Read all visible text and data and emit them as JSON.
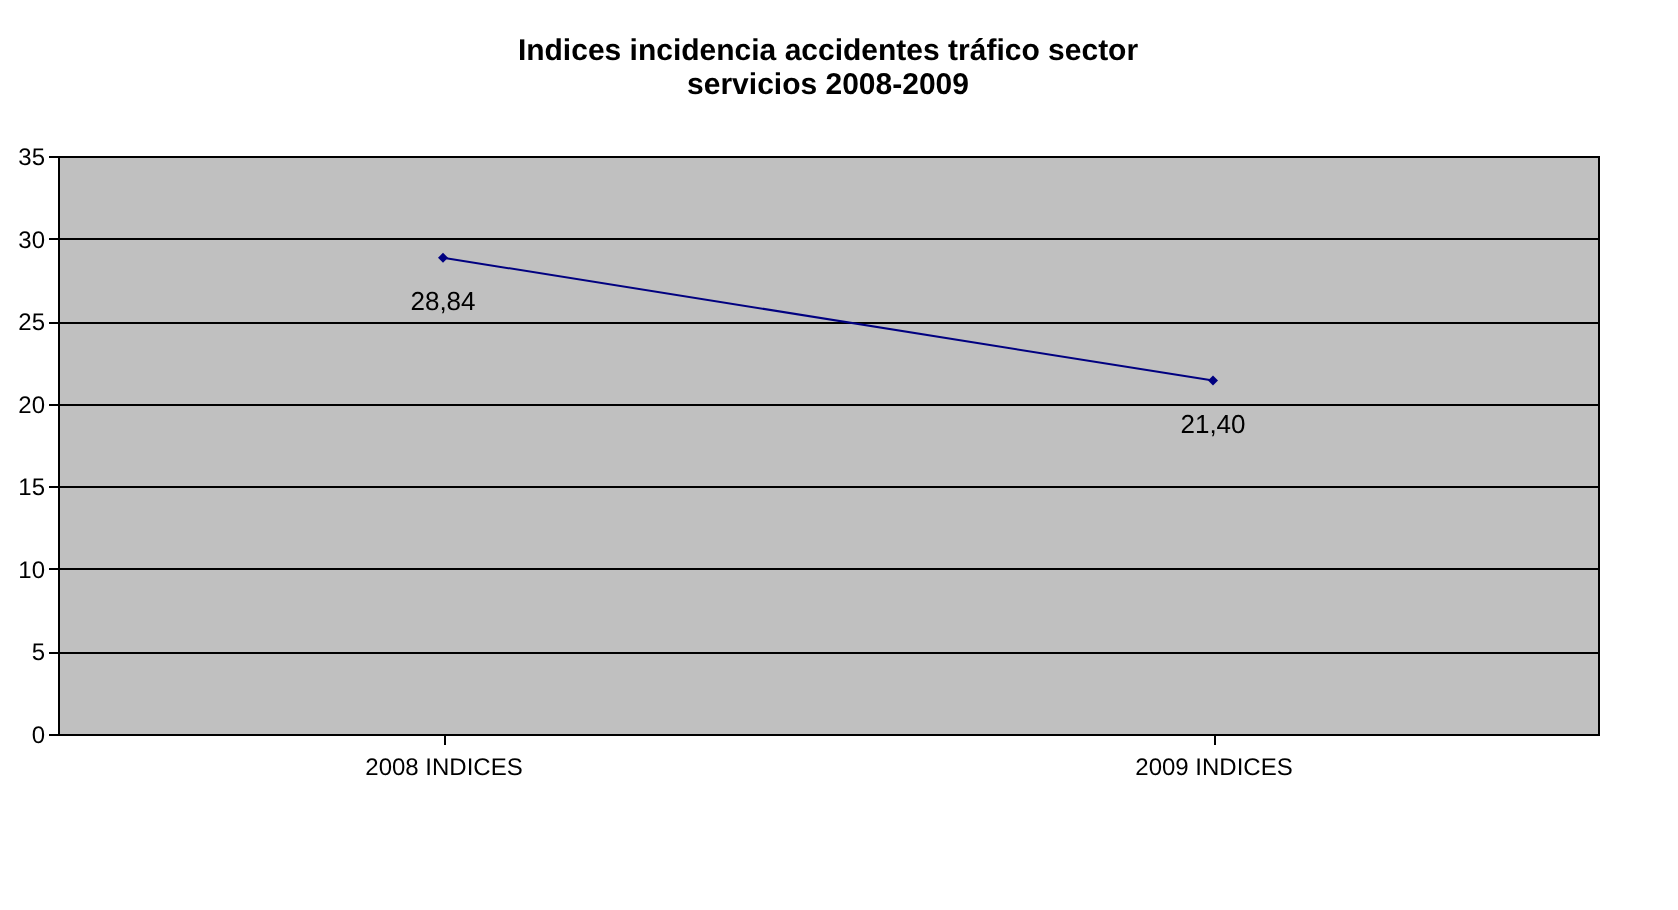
{
  "chart_data": {
    "type": "line",
    "title": [
      "Indices incidencia accidentes tráfico sector",
      "servicios 2008-2009"
    ],
    "categories": [
      "2008 INDICES",
      "2009 INDICES"
    ],
    "series": [
      {
        "color": "#000080",
        "values": [
          28.84,
          21.4
        ],
        "value_labels": [
          "28,84",
          "21,40"
        ]
      }
    ],
    "ylim": [
      0,
      35
    ],
    "yticks": [
      0,
      5,
      10,
      15,
      20,
      25,
      30,
      35
    ],
    "grid": "y",
    "marker": "diamond",
    "line_style": "solid"
  }
}
